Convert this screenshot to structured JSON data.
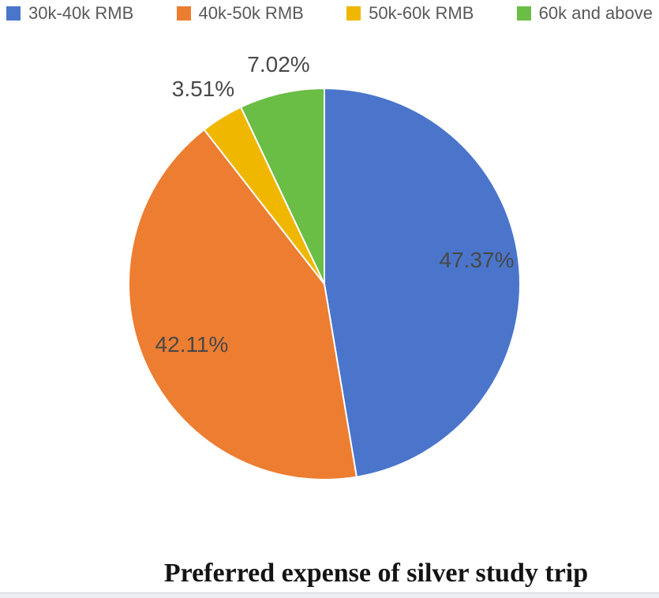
{
  "chart_data": {
    "type": "pie",
    "title": "Preferred expense of silver study trip",
    "legend_position": "top",
    "direction": "clockwise",
    "start_angle_deg": 0,
    "slices": [
      {
        "name": "30k-40k RMB",
        "value": 47.37,
        "label": "47.37%",
        "color": "#4A75CB",
        "label_placement": "inside"
      },
      {
        "name": "40k-50k RMB",
        "value": 42.11,
        "label": "42.11%",
        "color": "#ED7D31",
        "label_placement": "inside"
      },
      {
        "name": "50k-60k RMB",
        "value": 3.51,
        "label": "3.51%",
        "color": "#EFB700",
        "label_placement": "outside"
      },
      {
        "name": "60k and above",
        "value": 7.02,
        "label": "7.02%",
        "color": "#6ABD45",
        "label_placement": "outside"
      }
    ],
    "colors": {
      "slice_separator": "#FFFFFF",
      "label_text": "#484848",
      "legend_text": "#595959",
      "title_text": "#141414"
    }
  }
}
